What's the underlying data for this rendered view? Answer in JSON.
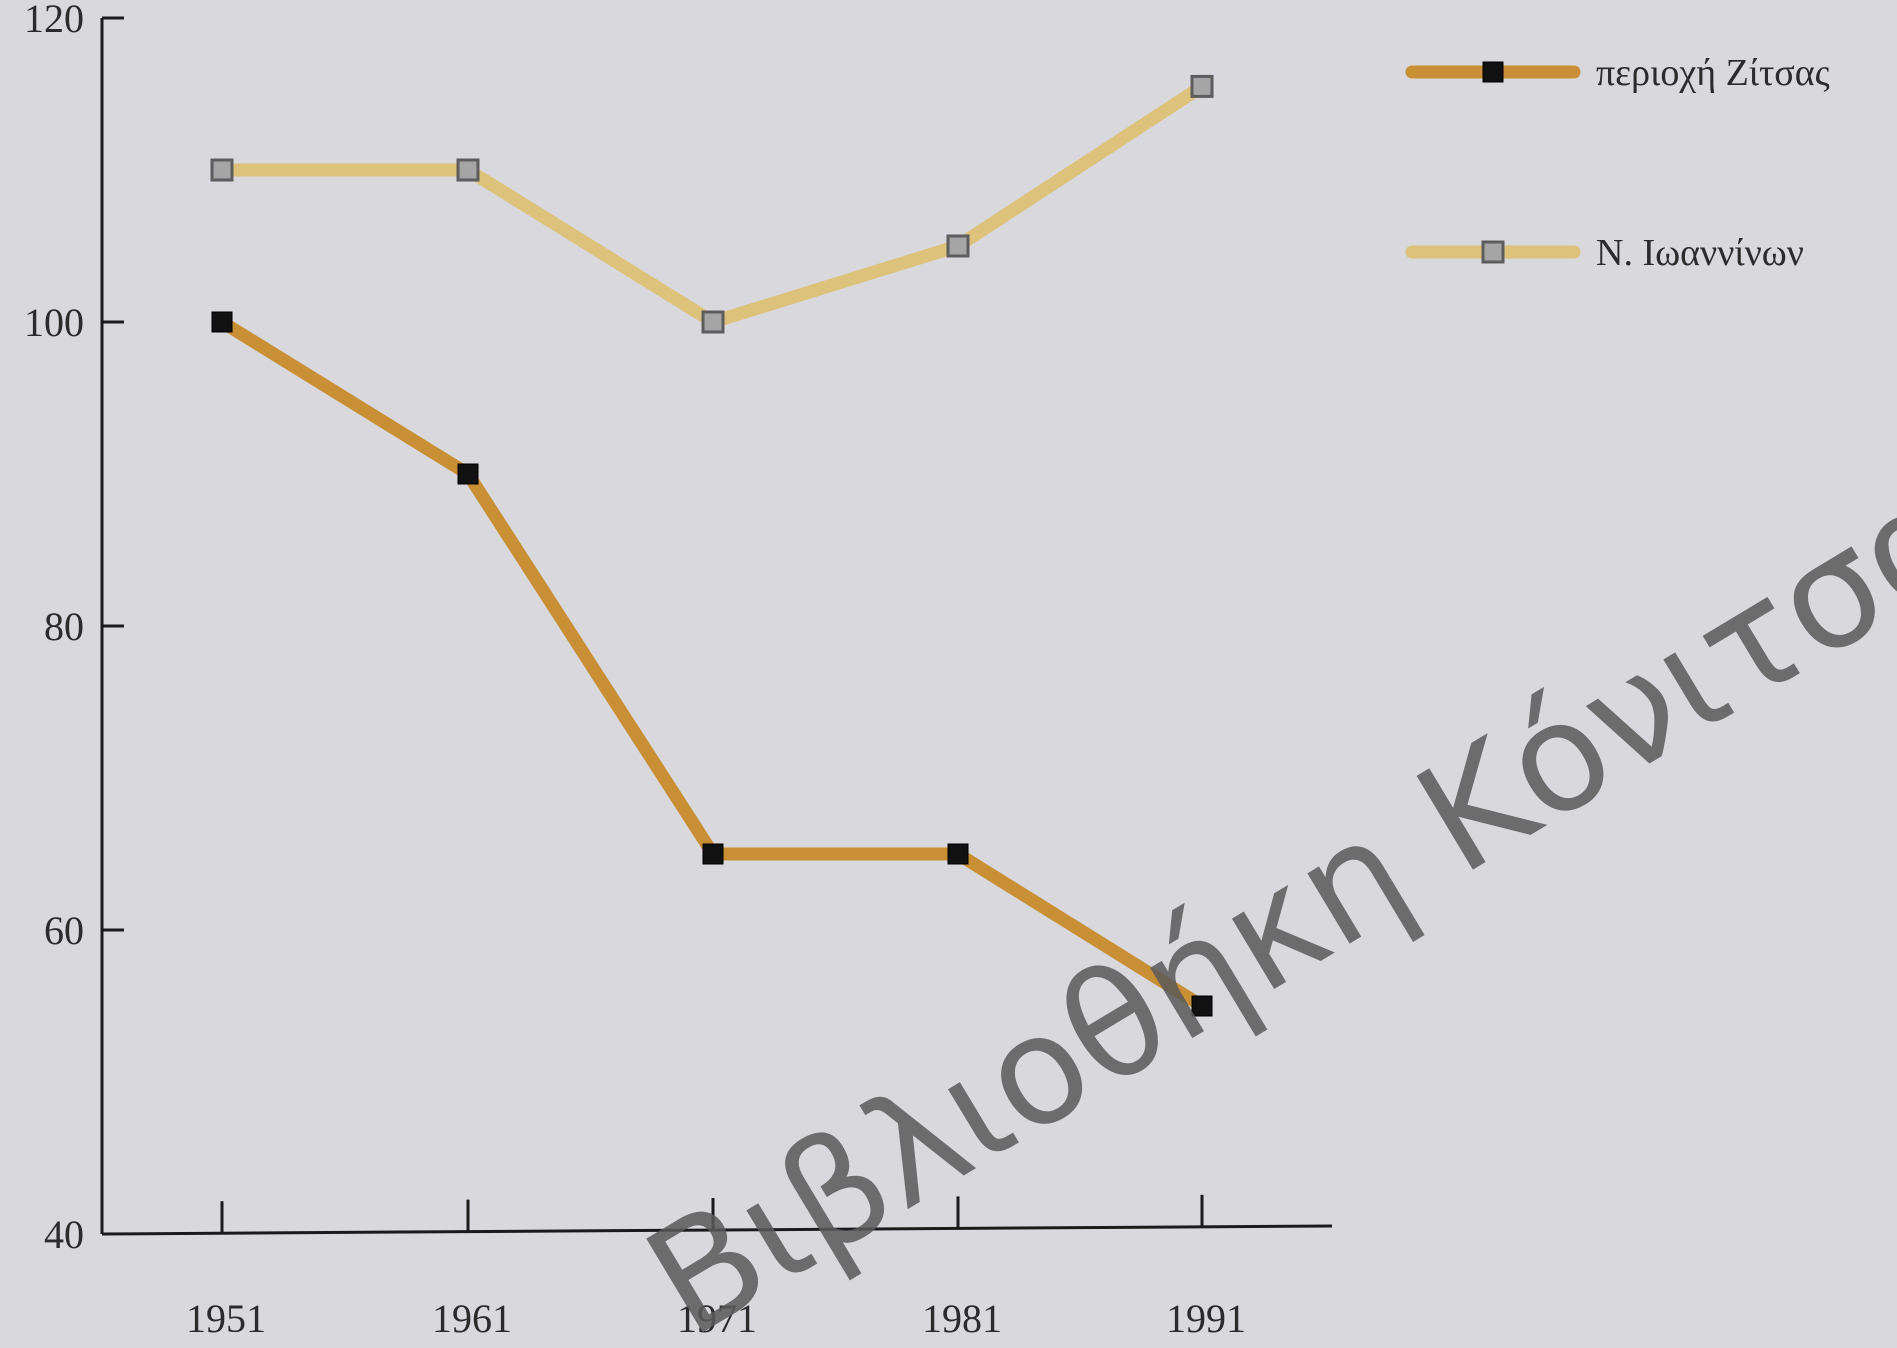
{
  "chart_data": {
    "type": "line",
    "x": [
      "1951",
      "1961",
      "1971",
      "1981",
      "1991"
    ],
    "ylim": [
      40,
      120
    ],
    "yticks": [
      40,
      60,
      80,
      100,
      120
    ],
    "grid": false,
    "legend_position": "top-right",
    "series": [
      {
        "name": "περιοχή Ζίτσας",
        "values": [
          100,
          90,
          65,
          65,
          55
        ],
        "line_color": "#c98f35",
        "marker": "filled-square",
        "marker_color": "#111111"
      },
      {
        "name": "Ν. Ιωαννίνων",
        "values": [
          110,
          110,
          100,
          105,
          115.5
        ],
        "line_color": "#dcc27a",
        "marker": "hollow-square",
        "marker_color": "#a5a5a5"
      }
    ]
  },
  "watermark": "Βιβλιοθήκη Κόνιτσας"
}
